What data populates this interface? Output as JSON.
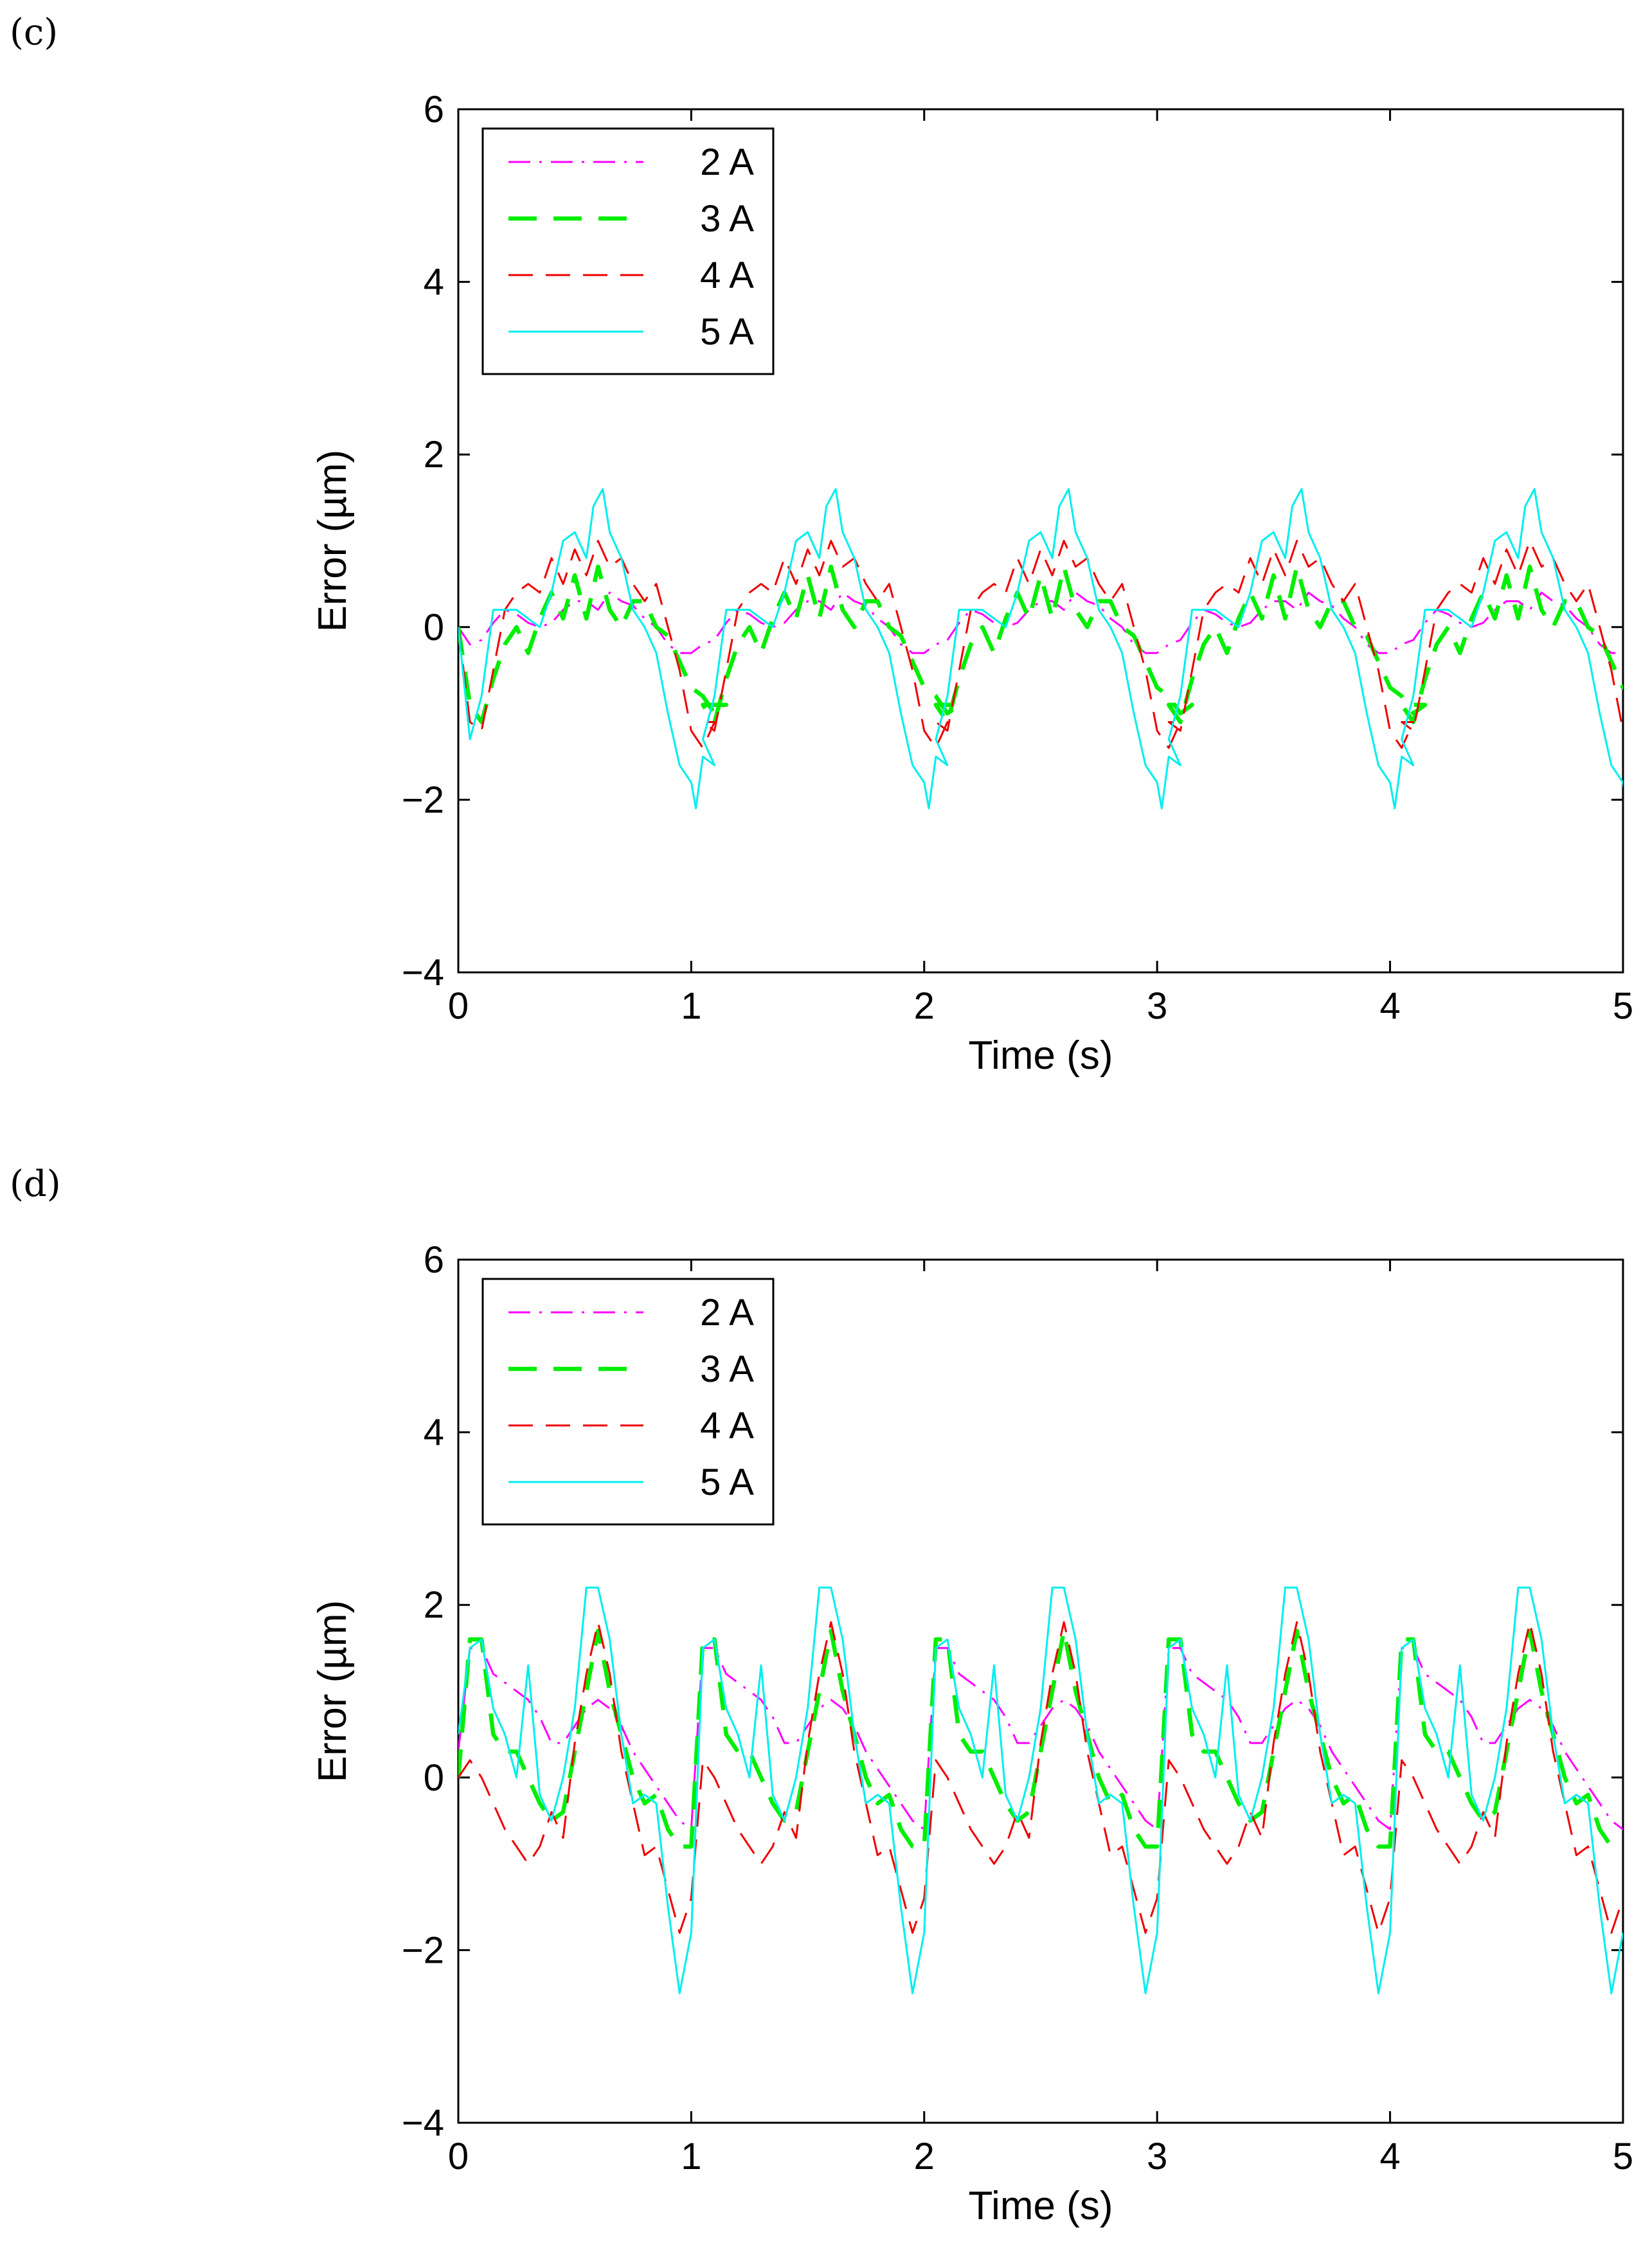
{
  "chart_data": [
    {
      "type": "line",
      "panel_label": "(c)",
      "title": "",
      "xlabel": "Time (s)",
      "ylabel": "Error (µm)",
      "xlim": [
        0,
        5
      ],
      "ylim": [
        -4,
        6
      ],
      "xticks": [
        "0",
        "1",
        "2",
        "3",
        "4",
        "5"
      ],
      "yticks": [
        "−4",
        "−2",
        "0",
        "2",
        "4",
        "6"
      ],
      "legend_position": "top-left",
      "grid": false,
      "series": [
        {
          "name": "2 A",
          "color": "#ff00ff",
          "style": "dashdot",
          "x": [
            0,
            0.05,
            0.1,
            0.15,
            0.2,
            0.25,
            0.3,
            0.35,
            0.4,
            0.45,
            0.5,
            0.55,
            0.6,
            0.65,
            0.7,
            0.75,
            0.8,
            0.85,
            0.9,
            0.95,
            1.0
          ],
          "y": [
            0.0,
            -0.2,
            -0.15,
            0.05,
            0.2,
            0.15,
            0.05,
            0.0,
            0.05,
            0.2,
            0.3,
            0.3,
            0.2,
            0.4,
            0.3,
            0.25,
            0.1,
            0.0,
            -0.2,
            -0.3,
            -0.3
          ]
        },
        {
          "name": "3 A",
          "color": "#00ee00",
          "style": "dash-thick",
          "x": [
            0,
            0.05,
            0.1,
            0.15,
            0.2,
            0.25,
            0.3,
            0.35,
            0.4,
            0.45,
            0.5,
            0.55,
            0.6,
            0.65,
            0.7,
            0.75,
            0.8,
            0.85,
            0.9,
            0.95,
            1.0,
            1.05,
            1.1,
            1.15
          ],
          "y": [
            0.0,
            -0.9,
            -1.1,
            -0.6,
            -0.2,
            0.0,
            -0.3,
            0.1,
            0.4,
            0.1,
            0.6,
            0.1,
            0.7,
            0.2,
            0.0,
            0.3,
            0.3,
            0.0,
            -0.1,
            -0.4,
            -0.7,
            -0.8,
            -1.0,
            -0.9
          ]
        },
        {
          "name": "4 A",
          "color": "#ee0000",
          "style": "dash",
          "x": [
            0,
            0.05,
            0.1,
            0.15,
            0.2,
            0.25,
            0.3,
            0.35,
            0.4,
            0.45,
            0.5,
            0.55,
            0.6,
            0.65,
            0.7,
            0.75,
            0.8,
            0.85,
            0.9,
            0.95,
            1.0,
            1.05,
            1.1
          ],
          "y": [
            0.0,
            -1.1,
            -1.2,
            -0.5,
            0.2,
            0.4,
            0.5,
            0.4,
            0.8,
            0.5,
            0.9,
            0.6,
            1.0,
            0.7,
            0.8,
            0.5,
            0.3,
            0.5,
            0.0,
            -0.5,
            -1.2,
            -1.4,
            -1.1
          ]
        },
        {
          "name": "5 A",
          "color": "#00eeee",
          "style": "solid",
          "x": [
            0,
            0.05,
            0.1,
            0.15,
            0.2,
            0.25,
            0.3,
            0.35,
            0.4,
            0.45,
            0.5,
            0.55,
            0.58,
            0.62,
            0.65,
            0.7,
            0.75,
            0.8,
            0.85,
            0.9,
            0.95,
            1.0,
            1.02,
            1.05,
            1.1
          ],
          "y": [
            0.0,
            -1.3,
            -0.8,
            0.2,
            0.2,
            0.2,
            0.1,
            0.0,
            0.4,
            1.0,
            1.1,
            0.8,
            1.4,
            1.6,
            1.1,
            0.8,
            0.2,
            0.0,
            -0.3,
            -1.0,
            -1.6,
            -1.8,
            -2.1,
            -1.5,
            -1.6
          ]
        }
      ]
    },
    {
      "type": "line",
      "panel_label": "(d)",
      "title": "",
      "xlabel": "Time (s)",
      "ylabel": "Error (µm)",
      "xlim": [
        0,
        5
      ],
      "ylim": [
        -4,
        6
      ],
      "xticks": [
        "0",
        "1",
        "2",
        "3",
        "4",
        "5"
      ],
      "yticks": [
        "−4",
        "−2",
        "0",
        "2",
        "4",
        "6"
      ],
      "legend_position": "top-left",
      "grid": false,
      "series": [
        {
          "name": "2 A",
          "color": "#ff00ff",
          "style": "dashdot",
          "x": [
            0,
            0.05,
            0.1,
            0.15,
            0.2,
            0.25,
            0.3,
            0.35,
            0.4,
            0.45,
            0.5,
            0.55,
            0.6,
            0.65,
            0.7,
            0.75,
            0.8,
            0.85,
            0.9,
            0.95,
            1.0
          ],
          "y": [
            0.3,
            1.5,
            1.5,
            1.2,
            1.1,
            1.0,
            0.9,
            0.7,
            0.4,
            0.4,
            0.6,
            0.8,
            0.9,
            0.8,
            0.6,
            0.3,
            0.1,
            -0.1,
            -0.3,
            -0.5,
            -0.6
          ]
        },
        {
          "name": "3 A",
          "color": "#00ee00",
          "style": "dash-thick",
          "x": [
            0,
            0.05,
            0.1,
            0.15,
            0.2,
            0.25,
            0.3,
            0.35,
            0.4,
            0.45,
            0.5,
            0.55,
            0.6,
            0.65,
            0.7,
            0.75,
            0.8,
            0.85,
            0.9,
            0.95,
            1.0
          ],
          "y": [
            0.0,
            1.6,
            1.6,
            0.5,
            0.3,
            0.3,
            0.0,
            -0.3,
            -0.5,
            -0.4,
            0.3,
            1.0,
            1.7,
            1.0,
            0.5,
            0.0,
            -0.3,
            -0.2,
            -0.6,
            -0.8,
            -0.8
          ]
        },
        {
          "name": "4 A",
          "color": "#ee0000",
          "style": "dash",
          "x": [
            0,
            0.05,
            0.1,
            0.15,
            0.2,
            0.25,
            0.3,
            0.35,
            0.4,
            0.45,
            0.5,
            0.55,
            0.6,
            0.65,
            0.7,
            0.75,
            0.8,
            0.85,
            0.9,
            0.95,
            1.0
          ],
          "y": [
            0.0,
            0.2,
            0.0,
            -0.3,
            -0.6,
            -0.8,
            -1.0,
            -0.8,
            -0.4,
            -0.7,
            0.4,
            1.2,
            1.8,
            1.2,
            0.3,
            -0.3,
            -0.9,
            -0.8,
            -1.3,
            -1.8,
            -1.4
          ]
        },
        {
          "name": "5 A",
          "color": "#00eeee",
          "style": "solid",
          "x": [
            0,
            0.05,
            0.1,
            0.15,
            0.2,
            0.25,
            0.3,
            0.35,
            0.4,
            0.45,
            0.5,
            0.55,
            0.6,
            0.65,
            0.7,
            0.75,
            0.8,
            0.85,
            0.9,
            0.95,
            1.0
          ],
          "y": [
            0.5,
            1.5,
            1.6,
            0.8,
            0.5,
            0.0,
            1.3,
            -0.2,
            -0.5,
            0.0,
            0.8,
            2.2,
            2.2,
            1.6,
            0.5,
            -0.3,
            -0.2,
            -0.3,
            -1.5,
            -2.5,
            -1.8
          ]
        }
      ]
    }
  ]
}
